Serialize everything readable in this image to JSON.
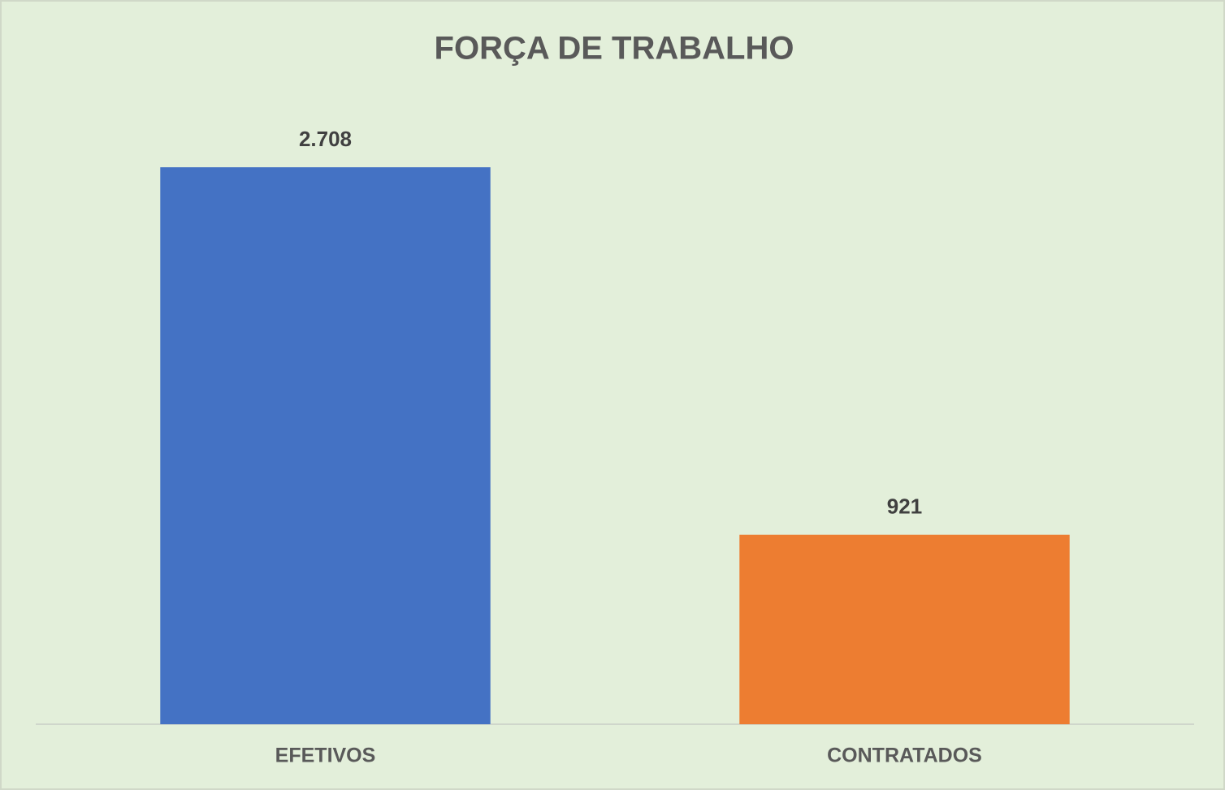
{
  "chart_data": {
    "type": "bar",
    "title": "FORÇA DE TRABALHO",
    "categories": [
      "EFETIVOS",
      "CONTRATADOS"
    ],
    "values": [
      2708,
      921
    ],
    "value_labels": [
      "2.708",
      "921"
    ],
    "colors": [
      "#4472c4",
      "#ed7d31"
    ]
  }
}
